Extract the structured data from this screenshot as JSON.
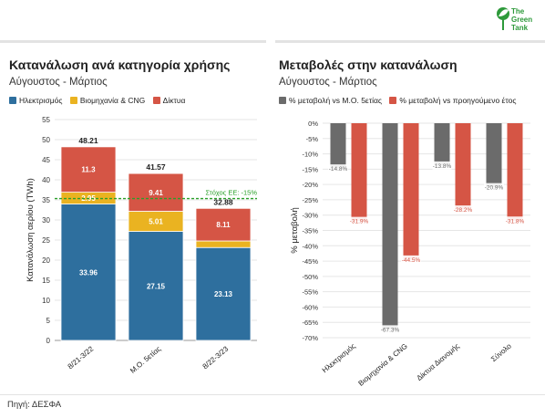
{
  "brand": {
    "logo_text": "The Green Tank",
    "logo_color": "#2e9a3b"
  },
  "source": "Πηγή: ΔΕΣΦΑ",
  "colors": {
    "electricity": "#2e6f9e",
    "industry": "#eab321",
    "networks": "#d55545",
    "gray": "#6b6b6b",
    "target": "#2aa02a"
  },
  "chart_data": [
    {
      "type": "bar",
      "stacked": true,
      "title": "Κατανάλωση ανά κατηγορία χρήσης",
      "subtitle": "Αύγουστος - Μάρτιος",
      "ylabel": "Κατανάλωση αερίου (TWh)",
      "ylim": [
        0,
        55
      ],
      "yticks": [
        0,
        5,
        10,
        15,
        20,
        25,
        30,
        35,
        40,
        45,
        50,
        55
      ],
      "categories": [
        "8/21-3/22",
        "Μ.Ο. 5ετίας",
        "8/22-3/23"
      ],
      "series": [
        {
          "name": "Ηλεκτρισμός",
          "color": "#2e6f9e",
          "values": [
            33.96,
            27.15,
            23.13
          ],
          "labels": [
            "33.96",
            "27.15",
            "23.13"
          ]
        },
        {
          "name": "Βιομηχανία & CNG",
          "color": "#eab321",
          "values": [
            2.95,
            5.01,
            1.64
          ],
          "labels": [
            "2.95",
            "5.01",
            ""
          ]
        },
        {
          "name": "Δίκτυα",
          "color": "#d55545",
          "values": [
            11.3,
            9.41,
            8.11
          ],
          "labels": [
            "11.3",
            "9.41",
            "8.11"
          ]
        }
      ],
      "totals": [
        "48.21",
        "41.57",
        "32.88"
      ],
      "target": {
        "value": 35.33,
        "label": "Στόχος ΕΕ: -15%"
      },
      "legend_position": "top-left",
      "grid": true
    },
    {
      "type": "bar",
      "title": "Μεταβολές στην κατανάλωση",
      "subtitle": "Αύγουστος - Μάρτιος",
      "ylabel": "% μεταβολή",
      "ylim": [
        -70,
        0
      ],
      "yticks": [
        0,
        -5,
        -10,
        -15,
        -20,
        -25,
        -30,
        -35,
        -40,
        -45,
        -50,
        -55,
        -60,
        -65,
        -70
      ],
      "ytick_labels": [
        "0%",
        "-5%",
        "-10%",
        "-15%",
        "-20%",
        "-25%",
        "-30%",
        "-35%",
        "-40%",
        "-45%",
        "-50%",
        "-55%",
        "-60%",
        "-65%",
        "-70%"
      ],
      "categories": [
        "Ηλεκτρισμός",
        "Βιομηχανία & CNG",
        "Δίκτυα Διανομής",
        "Σύνολο"
      ],
      "series": [
        {
          "name": "% μεταβολή vs Μ.Ο. 5ετίας",
          "color": "#6b6b6b",
          "values": [
            -14.8,
            -67.3,
            -13.8,
            -20.9
          ],
          "labels": [
            "-14.8%",
            "-67.3%",
            "-13.8%",
            "-20.9%"
          ]
        },
        {
          "name": "% μεταβολή vs προηγούμενο έτος",
          "color": "#d55545",
          "values": [
            -31.9,
            -44.5,
            -28.2,
            -31.8
          ],
          "labels": [
            "-31.9%",
            "-44.5%",
            "-28.2%",
            "-31.8%"
          ]
        }
      ],
      "legend_position": "top-left",
      "grid": true
    }
  ]
}
